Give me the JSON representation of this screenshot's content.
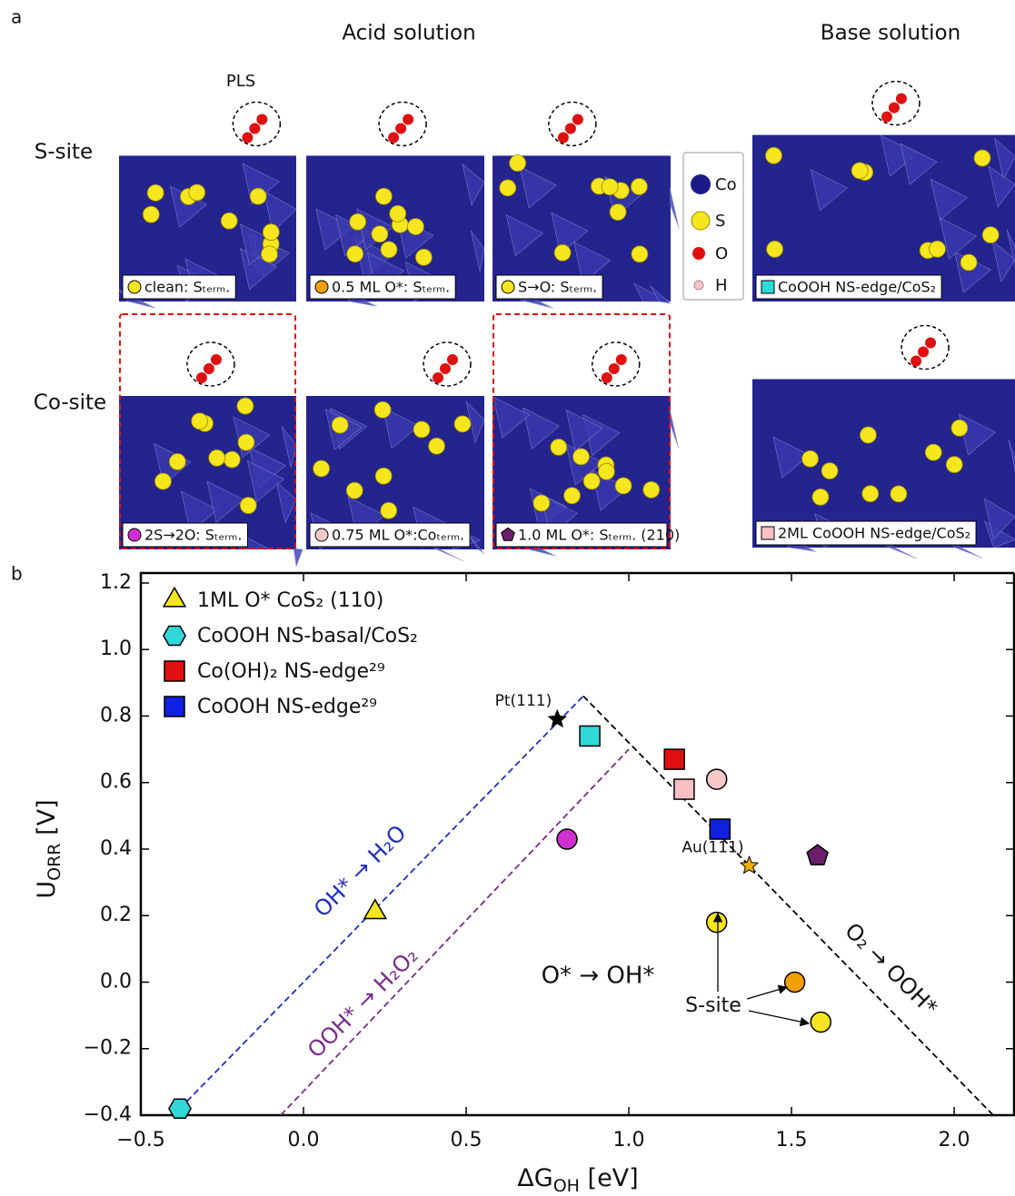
{
  "panel_a": {
    "label": "a",
    "columns": [
      "Acid solution",
      "Base solution"
    ],
    "rows": [
      "S-site",
      "Co-site"
    ],
    "pls": "PLS",
    "atoms": [
      "Co",
      "S",
      "O",
      "H"
    ],
    "captions": [
      "clean: Sₜₑᵣₘ.",
      "0.5 ML O*: Sₜₑᵣₘ.",
      "S→O: Sₜₑᵣₘ.",
      "CoOOH NS-edge/CoS₂",
      "2S→2O: Sₜₑᵣₘ.",
      "0.75 ML O*:Coₜₑᵣₘ.",
      "1.0 ML O*: Sₜₑᵣₘ. (210)",
      "2ML CoOOH NS-edge/CoS₂"
    ]
  },
  "panel_b": {
    "label": "b"
  },
  "chart_data": {
    "type": "scatter",
    "xlabel": {
      "main": "ΔG",
      "sub": "OH",
      "unit": " [eV]"
    },
    "ylabel": {
      "main": "U",
      "sub": "ORR",
      "unit": " [V]"
    },
    "xlim": [
      -0.5,
      2.187
    ],
    "ylim": [
      -0.4,
      1.23
    ],
    "xticks": [
      {
        "value": -0.5,
        "label": "−0.5"
      },
      {
        "value": 0,
        "label": "0.0"
      },
      0.5,
      {
        "value": 1,
        "label": "1.0"
      },
      1.5,
      {
        "value": 2,
        "label": "2.0"
      }
    ],
    "yticks": [
      {
        "value": -0.4,
        "label": "−0.4"
      },
      {
        "value": -0.2,
        "label": "−0.2"
      },
      {
        "value": 0,
        "label": "0.0"
      },
      0.2,
      0.4,
      0.6,
      0.8,
      {
        "value": 1,
        "label": "1.0"
      },
      1.2
    ],
    "legend": "upper left",
    "series": [
      {
        "name": "1ML O* CoS₂ (110)",
        "marker": "triangle",
        "color": "#f5e61e",
        "x": [
          0.22
        ],
        "values": [
          0.21
        ]
      },
      {
        "name": "CoOOH NS-basal/CoS₂",
        "marker": "hexagon",
        "color": "#30d8d8",
        "x": [
          -0.38
        ],
        "values": [
          -0.38
        ]
      },
      {
        "name": "Co(OH)₂ NS-edge²⁹",
        "marker": "square",
        "color": "#e01010",
        "x": [
          1.14
        ],
        "values": [
          0.67
        ]
      },
      {
        "name": "CoOOH NS-edge²⁹",
        "marker": "square",
        "color": "#1020e0",
        "x": [
          1.28
        ],
        "values": [
          0.46
        ]
      },
      {
        "marker": "square",
        "color": "#30d8d8",
        "x": [
          0.88
        ],
        "values": [
          0.74
        ]
      },
      {
        "marker": "square",
        "color": "#f8c0c4",
        "x": [
          1.17
        ],
        "values": [
          0.58
        ]
      },
      {
        "marker": "circle",
        "color": "#d030d0",
        "x": [
          0.81
        ],
        "values": [
          0.43
        ]
      },
      {
        "marker": "circle",
        "color": "#f8c8c8",
        "x": [
          1.27
        ],
        "values": [
          0.61
        ]
      },
      {
        "marker": "pentagon",
        "color": "#6b1f6b",
        "x": [
          1.58
        ],
        "values": [
          0.38
        ]
      },
      {
        "marker": "circle",
        "color": "#f5e61e",
        "x": [
          1.27
        ],
        "values": [
          0.18
        ]
      },
      {
        "marker": "circle",
        "color": "#f0a000",
        "x": [
          1.51
        ],
        "values": [
          0.0
        ]
      },
      {
        "marker": "circle",
        "color": "#f5e61e",
        "x": [
          1.59
        ],
        "values": [
          -0.12
        ]
      }
    ],
    "reference_points": [
      {
        "label": "Pt(111)",
        "color": "#000000",
        "x": 0.78,
        "y": 0.79
      },
      {
        "label": "Au(111)",
        "color": "#f0b000",
        "x": 1.37,
        "y": 0.35
      }
    ],
    "lines": [
      {
        "color": "#1f2fc0",
        "x": [
          -0.38,
          0.86
        ],
        "values": [
          -0.38,
          0.86
        ]
      },
      {
        "color": "#000000",
        "x": [
          0.86,
          2.12
        ],
        "values": [
          0.86,
          -0.4
        ]
      },
      {
        "color": "#7a2a8a",
        "x": [
          -0.07,
          1.0
        ],
        "values": [
          -0.4,
          0.7
        ]
      }
    ],
    "annotations": [
      "OH* → H₂O",
      "OOH* → H₂O₂",
      "O* → OH*",
      "O₂ → OOH*",
      "S-site"
    ]
  }
}
